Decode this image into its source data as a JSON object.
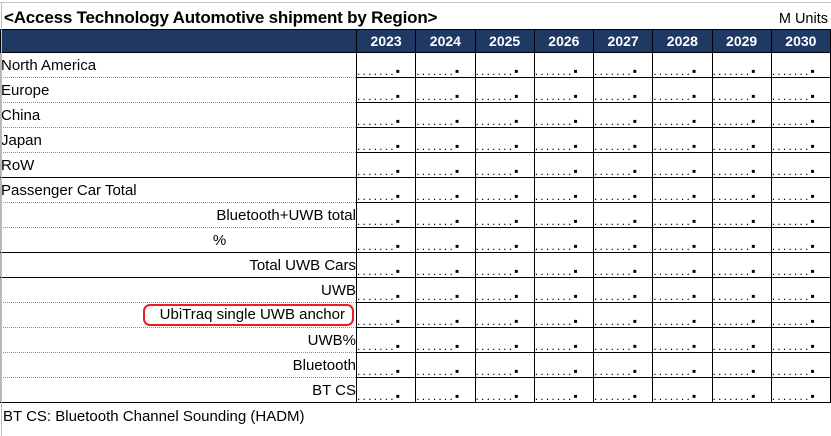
{
  "title": "<Access Technology Automotive shipment by Region>",
  "units_label": "M Units",
  "table": {
    "years": [
      "2023",
      "2024",
      "2025",
      "2026",
      "2027",
      "2028",
      "2029",
      "2030"
    ],
    "cell_placeholder": ".......▪",
    "rows": [
      {
        "label": "North America",
        "align": "left",
        "separator": "dotted",
        "highlight": false
      },
      {
        "label": "Europe",
        "align": "left",
        "separator": "dotted",
        "highlight": false
      },
      {
        "label": "China",
        "align": "left",
        "separator": "dotted",
        "highlight": false
      },
      {
        "label": "Japan",
        "align": "left",
        "separator": "dotted",
        "highlight": false
      },
      {
        "label": "RoW",
        "align": "left",
        "separator": "solid",
        "highlight": false
      },
      {
        "label": "Passenger Car Total",
        "align": "left",
        "separator": "dotted",
        "highlight": false
      },
      {
        "label": "Bluetooth+UWB total",
        "align": "right",
        "separator": "dotted",
        "highlight": false
      },
      {
        "label": "%",
        "align": "center",
        "separator": "solid",
        "highlight": false
      },
      {
        "label": "Total UWB Cars",
        "align": "right",
        "separator": "solid",
        "highlight": false
      },
      {
        "label": "UWB",
        "align": "right",
        "separator": "dotted",
        "highlight": false
      },
      {
        "label": "UbiTraq single UWB anchor",
        "align": "right",
        "separator": "dotted",
        "highlight": true
      },
      {
        "label": "UWB%",
        "align": "right",
        "separator": "dotted",
        "highlight": false
      },
      {
        "label": "Bluetooth",
        "align": "right",
        "separator": "dotted",
        "highlight": false
      },
      {
        "label": "BT CS",
        "align": "right",
        "separator": "solid",
        "highlight": false
      }
    ]
  },
  "footnote": "BT CS: Bluetooth Channel Sounding (HADM)",
  "colors": {
    "header_bg": "#1f3864",
    "header_text": "#ffffff",
    "grid_border": "#000000",
    "dotted_separator": "#8f8f8f",
    "highlight_box": "#ee1c25",
    "title_text": "#000000"
  }
}
